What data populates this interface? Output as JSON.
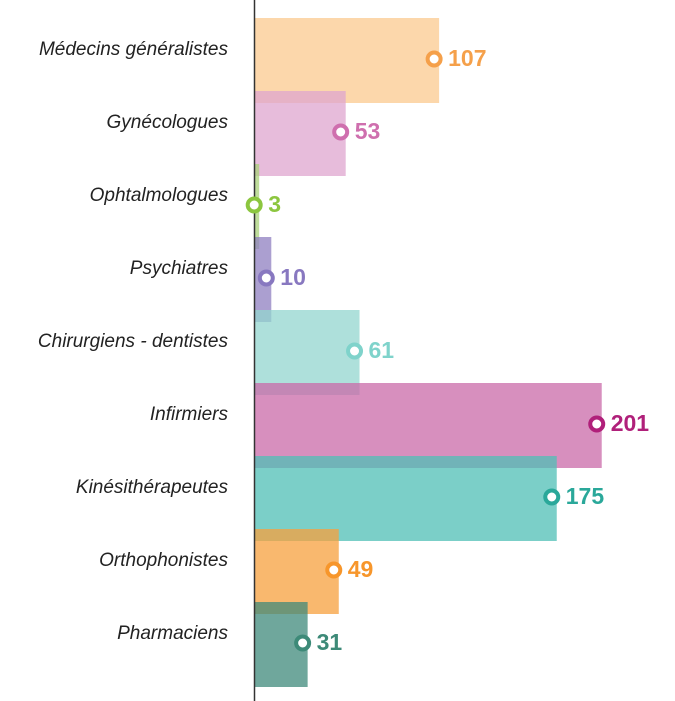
{
  "chart_data": {
    "type": "bar",
    "orientation": "horizontal",
    "categories": [
      "Médecins généralistes",
      "Gynécologues",
      "Ophtalmologues",
      "Psychiatres",
      "Chirurgiens - dentistes",
      "Infirmiers",
      "Kinésithérapeutes",
      "Orthophonistes",
      "Pharmaciens"
    ],
    "values": [
      107,
      53,
      3,
      10,
      61,
      201,
      175,
      49,
      31
    ],
    "colors": [
      "#fbc98f",
      "#dfa6cf",
      "#a9d27a",
      "#8f7fc0",
      "#93d6cf",
      "#c96aa8",
      "#4fbfb5",
      "#f7a03e",
      "#3f8a7b"
    ],
    "label_colors": [
      "#f5a04a",
      "#cf6fae",
      "#8cc63f",
      "#8878c0",
      "#7fd3cb",
      "#b0207a",
      "#2aa89a",
      "#f7962b",
      "#3d8a78"
    ],
    "xlim": [
      0,
      200
    ]
  }
}
